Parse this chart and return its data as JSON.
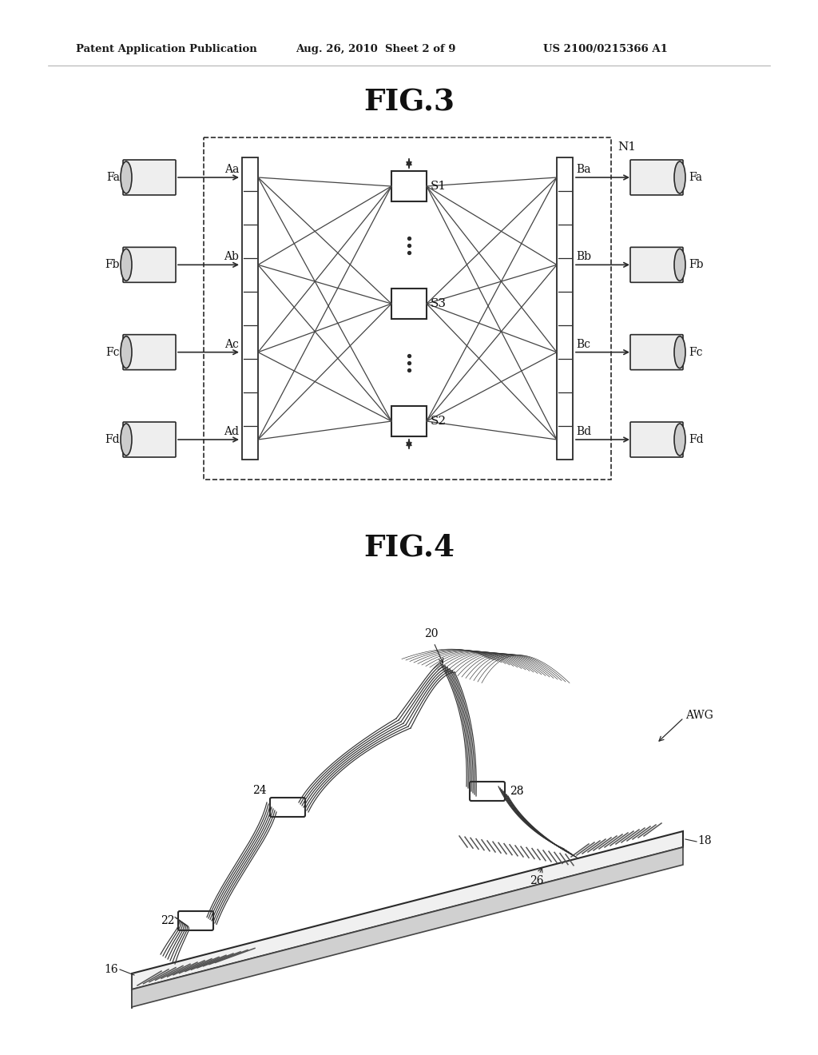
{
  "bg_color": "#ffffff",
  "header_left": "Patent Application Publication",
  "header_mid": "Aug. 26, 2010  Sheet 2 of 9",
  "header_right": "US 2100/0215366 A1",
  "fig3_title": "FIG.3",
  "fig4_title": "FIG.4",
  "label_N1": "N1",
  "label_S1": "S1",
  "label_S2": "S2",
  "label_S3": "S3",
  "labels_Fx_left": [
    "Fa",
    "Fb",
    "Fc",
    "Fd"
  ],
  "labels_Ax": [
    "Aa",
    "Ab",
    "Ac",
    "Ad"
  ],
  "labels_Bx": [
    "Ba",
    "Bb",
    "Bc",
    "Bd"
  ],
  "labels_Fx_right": [
    "Fa",
    "Fb",
    "Fc",
    "Fd"
  ],
  "fig4_label_16": "16",
  "fig4_label_18": "18",
  "fig4_label_20": "20",
  "fig4_label_22": "22",
  "fig4_label_24": "24",
  "fig4_label_26": "26",
  "fig4_label_28": "28",
  "fig4_label_AWG": "AWG"
}
